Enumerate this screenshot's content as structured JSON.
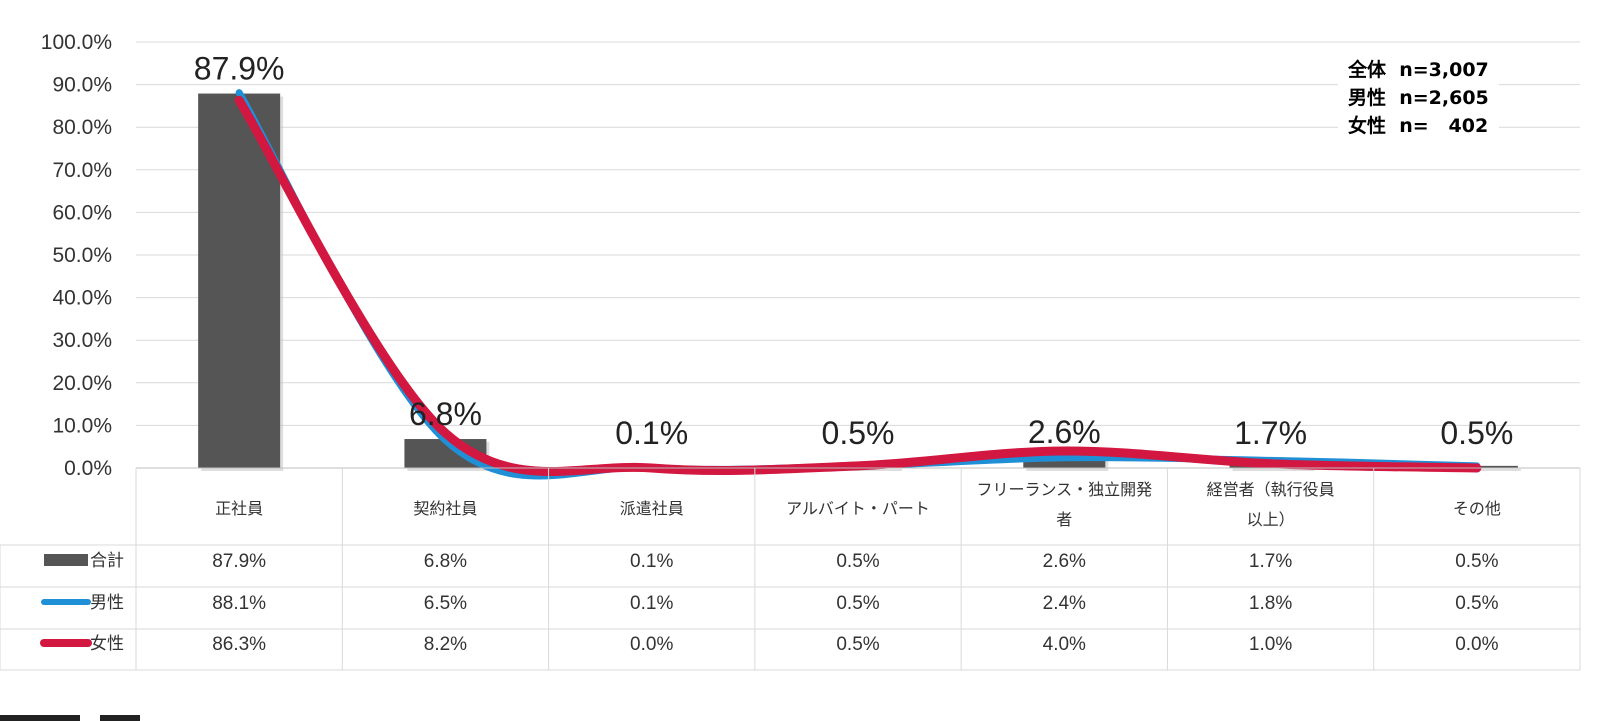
{
  "chart_data": {
    "type": "bar",
    "categories": [
      "正社員",
      "契約社員",
      "派遣社員",
      "アルバイト・パート",
      "フリーランス・独立開発者",
      "経営者（執行役員以上）",
      "その他"
    ],
    "category_lines": [
      [
        "正社員"
      ],
      [
        "契約社員"
      ],
      [
        "派遣社員"
      ],
      [
        "アルバイト・パート"
      ],
      [
        "フリーランス・独立開発",
        "者"
      ],
      [
        "経営者（執行役員",
        "以上）"
      ],
      [
        "その他"
      ]
    ],
    "ylim": [
      0,
      100
    ],
    "yticks": [
      0,
      10,
      20,
      30,
      40,
      50,
      60,
      70,
      80,
      90,
      100
    ],
    "ytick_labels": [
      "0.0%",
      "10.0%",
      "20.0%",
      "30.0%",
      "40.0%",
      "50.0%",
      "60.0%",
      "70.0%",
      "80.0%",
      "90.0%",
      "100.0%"
    ],
    "grid": true,
    "series": [
      {
        "name": "合計",
        "kind": "bar",
        "color": "#555555",
        "values": [
          87.9,
          6.8,
          0.1,
          0.5,
          2.6,
          1.7,
          0.5
        ],
        "labels": [
          "87.9%",
          "6.8%",
          "0.1%",
          "0.5%",
          "2.6%",
          "1.7%",
          "0.5%"
        ]
      },
      {
        "name": "男性",
        "kind": "line",
        "color": "#1f8fd6",
        "values": [
          88.1,
          6.5,
          0.1,
          0.5,
          2.4,
          1.8,
          0.5
        ],
        "labels": [
          "88.1%",
          "6.5%",
          "0.1%",
          "0.5%",
          "2.4%",
          "1.8%",
          "0.5%"
        ]
      },
      {
        "name": "女性",
        "kind": "line",
        "color": "#d21740",
        "values": [
          86.3,
          8.2,
          0.0,
          0.5,
          4.0,
          1.0,
          0.0
        ],
        "labels": [
          "86.3%",
          "8.2%",
          "0.0%",
          "0.5%",
          "4.0%",
          "1.0%",
          "0.0%"
        ]
      }
    ],
    "annotation": [
      "全体  n=3,007",
      "男性  n=2,605",
      "女性  n=   402"
    ]
  }
}
